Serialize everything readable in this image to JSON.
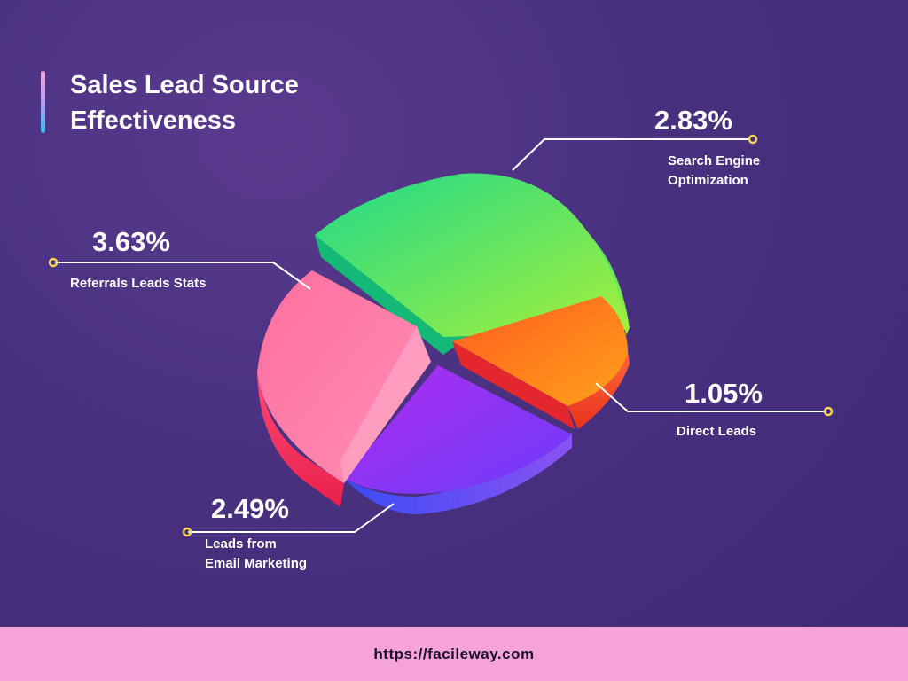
{
  "title_line1": "Sales Lead Source",
  "title_line2": "Effectiveness",
  "footer_url": "https://facileway.com",
  "chart_data": {
    "type": "pie",
    "title": "Sales Lead Source Effectiveness",
    "slices": [
      {
        "label": "Search Engine Optimization",
        "label_line1": "Search Engine",
        "label_line2": "Optimization",
        "value": 2.83,
        "display": "2.83%",
        "color": "#2bd97d"
      },
      {
        "label": "Direct Leads",
        "label_line1": "Direct Leads",
        "value": 1.05,
        "display": "1.05%",
        "color": "#ff7a1a"
      },
      {
        "label": "Leads from Email Marketing",
        "label_line1": "Leads from",
        "label_line2": "Email Marketing",
        "value": 2.49,
        "display": "2.49%",
        "color": "#9b3cf5"
      },
      {
        "label": "Referrals Leads Stats",
        "label_line1": "Referrals Leads Stats",
        "value": 3.63,
        "display": "3.63%",
        "color": "#ff6f9a"
      }
    ]
  }
}
